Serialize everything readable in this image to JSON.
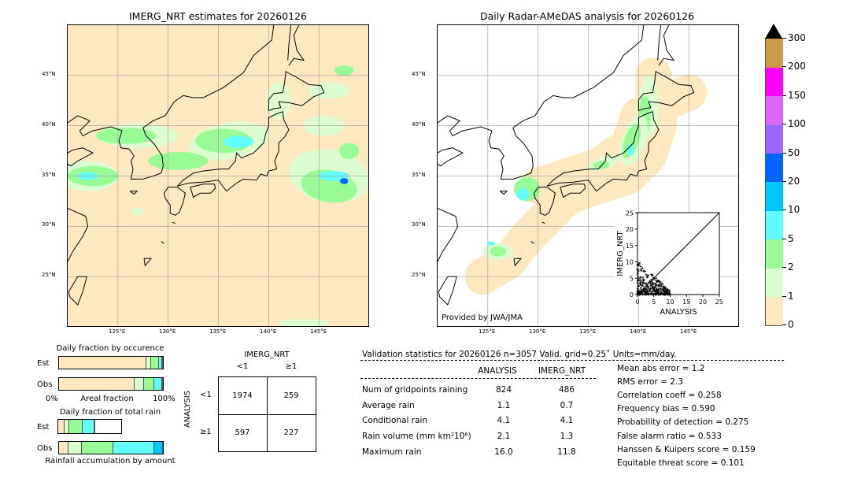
{
  "left_map": {
    "title": "IMERG_NRT estimates for 20260126",
    "lon_ticks": [
      "125°E",
      "130°E",
      "135°E",
      "140°E",
      "145°E"
    ],
    "lat_ticks": [
      "45°N",
      "40°N",
      "35°N",
      "30°N",
      "25°N"
    ]
  },
  "right_map": {
    "title": "Daily Radar-AMeDAS analysis for 20260126",
    "credit": "Provided by JWA/JMA",
    "lon_ticks": [
      "125°E",
      "130°E",
      "135°E",
      "140°E",
      "145°E"
    ],
    "lat_ticks": [
      "45°N",
      "40°N",
      "35°N",
      "30°N",
      "25°N"
    ]
  },
  "colorbar": {
    "labels": [
      "0",
      "1",
      "2",
      "5",
      "10",
      "20",
      "50",
      "100",
      "150",
      "200",
      "300"
    ],
    "colors": [
      "#fee8bf",
      "#dcfdd0",
      "#99fb96",
      "#62fdfe",
      "#00c7ff",
      "#0064ff",
      "#9966ff",
      "#dd66ff",
      "#ff00ff",
      "#cc9944"
    ],
    "extend": "max"
  },
  "chart_data": [
    {
      "type": "scatter",
      "xlabel": "ANALYSIS",
      "ylabel": "IMERG_NRT",
      "xlim": [
        0,
        25
      ],
      "ylim": [
        0,
        25
      ],
      "x_ticks": [
        "0",
        "5",
        "10",
        "15",
        "20",
        "25"
      ],
      "y_ticks": [
        "0",
        "5",
        "10",
        "15",
        "20",
        "25"
      ],
      "reference_line": "y=x"
    },
    {
      "type": "bar",
      "title": "Daily fraction by occurence",
      "xlabel": "Areal fraction",
      "x_tick_labels": [
        "0%",
        "100%"
      ],
      "categories": [
        "Est",
        "Obs"
      ],
      "stacked_percent": {
        "Est": [
          84,
          5,
          7,
          3,
          1
        ],
        "Obs": [
          73,
          9,
          10,
          7,
          1
        ]
      }
    },
    {
      "type": "bar",
      "title": "Daily fraction of total rain",
      "xlabel": "Rainfall accumulation by amount",
      "categories": [
        "Est",
        "Obs"
      ],
      "stacked_percent": {
        "Est": [
          10.5,
          7.5,
          21,
          19,
          1.5
        ],
        "Obs": [
          9,
          13,
          30,
          40,
          8
        ]
      }
    }
  ],
  "contingency": {
    "col_title": "IMERG_NRT",
    "row_title": "ANALYSIS",
    "col_labels": [
      "<1",
      "≥1"
    ],
    "row_labels": [
      "<1",
      "≥1"
    ],
    "cells": [
      [
        "1974",
        "259"
      ],
      [
        "597",
        "227"
      ]
    ]
  },
  "stats": {
    "title": "Validation statistics for 20260126  n=3057 Valid. grid=0.25˚ Units=mm/day.",
    "columns": [
      "ANALYSIS",
      "IMERG_NRT"
    ],
    "rows": [
      {
        "label": "Num of gridpoints raining",
        "a": "824",
        "b": "486"
      },
      {
        "label": "Average rain",
        "a": "1.1",
        "b": "0.7"
      },
      {
        "label": "Conditional rain",
        "a": "4.1",
        "b": "4.1"
      },
      {
        "label": "Rain volume (mm km²10⁶)",
        "a": "2.1",
        "b": "1.3"
      },
      {
        "label": "Maximum rain",
        "a": "16.0",
        "b": "11.8"
      }
    ],
    "scores": [
      "Mean abs error =    1.2",
      "RMS error =    2.3",
      "Correlation coeff =  0.258",
      "Frequency bias =  0.590",
      "Probability of detection =  0.275",
      "False alarm ratio =  0.533",
      "Hanssen & Kuipers score =  0.159",
      "Equitable threat score =  0.101"
    ]
  }
}
